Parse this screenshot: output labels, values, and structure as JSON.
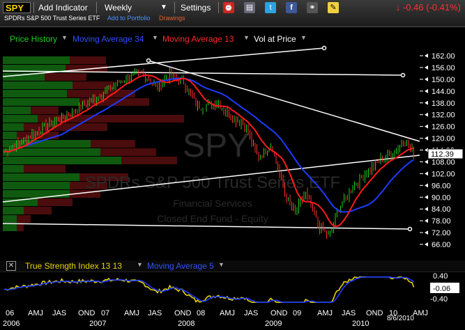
{
  "toolbar": {
    "symbol": "SPY",
    "add_indicator": "Add Indicator",
    "period": "Weekly",
    "settings": "Settings",
    "change": "↓ -0.46 (-0.41%)"
  },
  "subheader": {
    "name": "SPDRs S&P 500 Trust Series ETF",
    "add_portfolio": "Add to Portfolio",
    "drawings": "Drawings"
  },
  "legend": {
    "price": "Price History",
    "ma34": "Moving Average 34",
    "ma13": "Moving Average 13",
    "vap": "Vol at Price"
  },
  "watermark": {
    "symbol": "SPY",
    "name": "SPDRs S&P 500 Trust Series ETF",
    "sector": "Financial Services",
    "type": "Closed End Fund - Equity"
  },
  "price_axis": [
    "162.00",
    "156.00",
    "150.00",
    "144.00",
    "138.00",
    "132.00",
    "126.00",
    "120.00",
    "114.00",
    "108.00",
    "102.00",
    "96.00",
    "90.00",
    "84.00",
    "78.00",
    "72.00",
    "66.00"
  ],
  "last_price": "112.39",
  "tsi": {
    "label": "True Strength Index 13 13",
    "ma": "Moving Average 5",
    "axis": [
      "0.40",
      "-0.40"
    ],
    "last": "-0.06"
  },
  "months": [
    "06",
    "AMJ",
    "JAS",
    "OND",
    "07",
    "AMJ",
    "JAS",
    "OND",
    "08",
    "AMJ",
    "JAS",
    "OND",
    "09",
    "AMJ",
    "JAS",
    "OND",
    "10",
    "AMJ"
  ],
  "years": [
    "2006",
    "2007",
    "2008",
    "2009",
    "2010"
  ],
  "date": "8/6/2010",
  "colors": {
    "accent": "#ffd200",
    "ma34": "#1e3cff",
    "ma13": "#ff1a1a",
    "price": "#22cc22",
    "down": "#ff3030"
  }
}
